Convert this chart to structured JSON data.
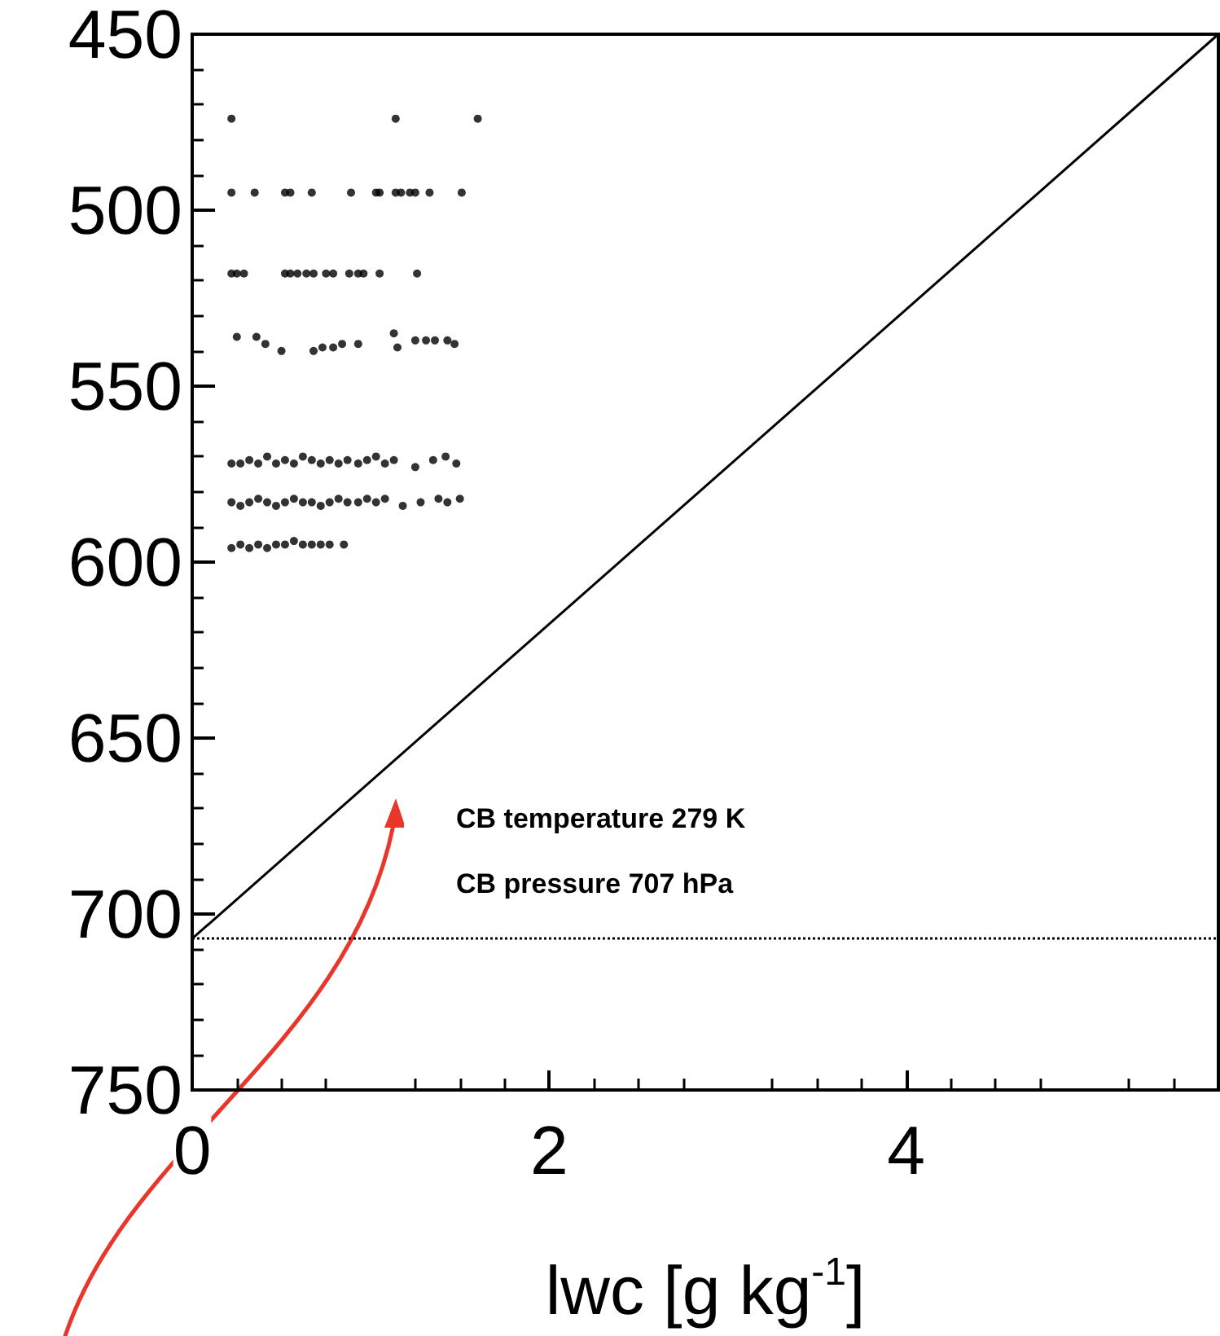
{
  "chart_data": {
    "type": "scatter",
    "xlabel": "lwc [g kg$^{-1}$]",
    "xlim": [
      0,
      5.75
    ],
    "xticks": [
      0,
      2,
      4
    ],
    "ylim": [
      750,
      450
    ],
    "yticks": [
      450,
      500,
      550,
      600,
      650,
      700,
      750
    ],
    "grid": false,
    "annotations": [
      "CB temperature 279 K",
      "CB pressure 707 hPa"
    ],
    "ref_lines": [
      {
        "axis": "y",
        "value": 707,
        "line_style": "dotted",
        "color": "#000000"
      }
    ],
    "series": [
      {
        "marker": "circle",
        "color": "#000000",
        "x": [
          0.22,
          1.14,
          1.6,
          0.22,
          0.35,
          0.52,
          0.55,
          0.67,
          0.89,
          1.03,
          1.05,
          1.14,
          1.17,
          1.22,
          1.25,
          1.33,
          1.51,
          0.22,
          0.25,
          0.29,
          0.52,
          0.55,
          0.59,
          0.64,
          0.68,
          0.75,
          0.79,
          0.88,
          0.93,
          0.96,
          1.05,
          1.26,
          0.25,
          0.36,
          0.41,
          0.5,
          0.68,
          0.73,
          0.79,
          0.84,
          0.93,
          1.13,
          1.15,
          1.25,
          1.31,
          1.36,
          1.43,
          1.47,
          0.22,
          0.27,
          0.32,
          0.37,
          0.42,
          0.47,
          0.52,
          0.57,
          0.62,
          0.67,
          0.72,
          0.77,
          0.82,
          0.87,
          0.93,
          0.98,
          1.03,
          1.08,
          1.13,
          1.25,
          1.35,
          1.42,
          1.48,
          0.22,
          0.27,
          0.32,
          0.37,
          0.42,
          0.47,
          0.52,
          0.57,
          0.62,
          0.67,
          0.72,
          0.77,
          0.82,
          0.87,
          0.93,
          0.98,
          1.03,
          1.08,
          1.18,
          1.28,
          1.38,
          1.43,
          1.5,
          0.22,
          0.27,
          0.32,
          0.37,
          0.42,
          0.47,
          0.52,
          0.57,
          0.62,
          0.67,
          0.72,
          0.77,
          0.85
        ],
        "values": [
          474,
          474,
          474,
          495,
          495,
          495,
          495,
          495,
          495,
          495,
          495,
          495,
          495,
          495,
          495,
          495,
          495,
          518,
          518,
          518,
          518,
          518,
          518,
          518,
          518,
          518,
          518,
          518,
          518,
          518,
          518,
          518,
          536,
          536,
          538,
          540,
          540,
          539,
          539,
          538,
          538,
          535,
          539,
          537,
          537,
          537,
          537,
          538,
          572,
          572,
          571,
          572,
          570,
          572,
          571,
          572,
          570,
          571,
          572,
          571,
          572,
          571,
          572,
          571,
          570,
          572,
          571,
          573,
          571,
          570,
          572,
          583,
          584,
          583,
          582,
          583,
          584,
          583,
          582,
          583,
          583,
          584,
          583,
          582,
          583,
          583,
          582,
          583,
          582,
          584,
          583,
          582,
          583,
          582,
          596,
          595,
          596,
          595,
          596,
          595,
          595,
          594,
          595,
          595,
          595,
          595,
          595
        ]
      },
      {
        "type": "line",
        "marker": "none",
        "color": "#000000",
        "x": [
          0,
          5.75
        ],
        "values": [
          707,
          450
        ]
      }
    ]
  }
}
